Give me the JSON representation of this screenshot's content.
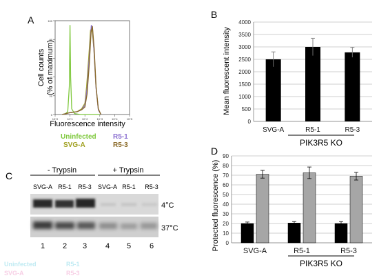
{
  "panels": {
    "A": {
      "letter": "A",
      "ylabel_line1": "Cell counts",
      "ylabel_line2": "(% of maximum)",
      "xlabel": "Fluorescence intensity",
      "yticks": [
        "0",
        "20",
        "40",
        "60",
        "80",
        "100"
      ],
      "xticks": [
        "10^0",
        "10^1",
        "10^2",
        "10^3",
        "10^4",
        "10^5"
      ],
      "legend": [
        {
          "label": "Uninfected",
          "color": "#7ec83c"
        },
        {
          "label": "R5-1",
          "color": "#8a6fd0"
        },
        {
          "label": "SVG-A",
          "color": "#a0a020"
        },
        {
          "label": "R5-3",
          "color": "#8a6a28"
        }
      ]
    },
    "B": {
      "letter": "B",
      "group_label": "PIK3R5 KO"
    },
    "C": {
      "letter": "C",
      "header_minus": "- Trypsin",
      "header_plus": "+ Trypsin",
      "lane_labels": [
        "SVG-A",
        "R5-1",
        "R5-3",
        "SVG-A",
        "R5-1",
        "R5-3"
      ],
      "lane_numbers": [
        "1",
        "2",
        "3",
        "4",
        "5",
        "6"
      ],
      "temp_top": "4°C",
      "temp_bottom": "37°C",
      "ghost_legend": [
        "Uninfected",
        "R5-1",
        "SVG-A",
        "R5-3"
      ]
    },
    "D": {
      "letter": "D",
      "group_label": "PIK3R5 KO"
    }
  },
  "chart_data": [
    {
      "panel": "A",
      "type": "line",
      "xlabel": "Fluorescence intensity",
      "ylabel": "Cell counts (% of maximum)",
      "log_x": true,
      "xlim": [
        1,
        100000
      ],
      "ylim": [
        0,
        100
      ],
      "series": [
        {
          "name": "Uninfected",
          "color": "#7ec83c",
          "x": [
            3,
            5,
            7,
            9,
            10,
            11,
            13,
            20,
            50,
            200,
            1000
          ],
          "y": [
            0,
            1,
            3,
            30,
            95,
            40,
            6,
            1,
            0,
            0,
            0
          ]
        },
        {
          "name": "SVG-A",
          "color": "#a0a020",
          "x": [
            3,
            10,
            30,
            60,
            100,
            130,
            180,
            240,
            300,
            400,
            550,
            800,
            1200
          ],
          "y": [
            0,
            2,
            3,
            6,
            12,
            30,
            60,
            90,
            92,
            70,
            30,
            5,
            0
          ]
        },
        {
          "name": "R5-1",
          "color": "#8a6fd0",
          "x": [
            3,
            10,
            30,
            60,
            100,
            140,
            200,
            270,
            330,
            420,
            560,
            800,
            1200
          ],
          "y": [
            0,
            2,
            3,
            5,
            10,
            28,
            62,
            95,
            90,
            65,
            28,
            5,
            0
          ]
        },
        {
          "name": "R5-3",
          "color": "#8a6a28",
          "x": [
            3,
            10,
            30,
            60,
            100,
            140,
            200,
            260,
            320,
            420,
            560,
            800,
            1200
          ],
          "y": [
            0,
            2,
            3,
            5,
            8,
            22,
            55,
            88,
            94,
            70,
            30,
            6,
            0
          ]
        }
      ]
    },
    {
      "panel": "B",
      "type": "bar",
      "categories": [
        "SVG-A",
        "R5-1",
        "R5-3"
      ],
      "values": [
        2500,
        3000,
        2780
      ],
      "errors": [
        300,
        350,
        200
      ],
      "ylabel": "Mean fluorescent intensity",
      "ylim": [
        0,
        4000
      ],
      "yticks": [
        0,
        500,
        1000,
        1500,
        2000,
        2500,
        3000,
        3500,
        4000
      ],
      "grid": true,
      "bar_color": "#000000"
    },
    {
      "panel": "D",
      "type": "bar",
      "categories": [
        "SVG-A",
        "R5-1",
        "R5-3"
      ],
      "series": [
        {
          "values": [
            20,
            20.5,
            20
          ],
          "errors": [
            1.5,
            1.5,
            2
          ],
          "color": "#000000"
        },
        {
          "values": [
            71,
            72.5,
            69
          ],
          "errors": [
            4,
            6,
            4
          ],
          "color": "#a6a6a6"
        }
      ],
      "ylabel": "Protected fluorescence (%)",
      "ylim": [
        0,
        90
      ],
      "yticks": [
        0,
        10,
        20,
        30,
        40,
        50,
        60,
        70,
        80,
        90
      ],
      "grid": true
    }
  ]
}
